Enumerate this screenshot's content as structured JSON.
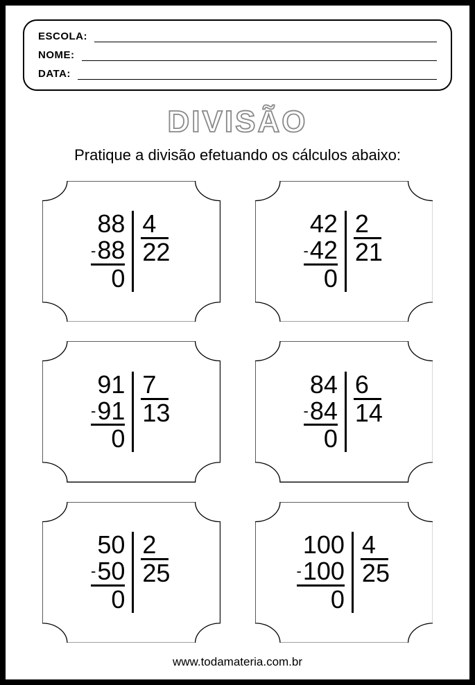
{
  "header": {
    "fields": [
      {
        "label": "ESCOLA:"
      },
      {
        "label": "NOME:"
      },
      {
        "label": "DATA:"
      }
    ]
  },
  "title": "DIVISÃO",
  "instruction": "Pratique a divisão efetuando os cálculos abaixo:",
  "problems": [
    {
      "dividend": "88",
      "subtrahend": "88",
      "remainder": "0",
      "divisor": "4",
      "quotient": "22"
    },
    {
      "dividend": "42",
      "subtrahend": "42",
      "remainder": "0",
      "divisor": "2",
      "quotient": "21"
    },
    {
      "dividend": "91",
      "subtrahend": "91",
      "remainder": "0",
      "divisor": "7",
      "quotient": "13"
    },
    {
      "dividend": "84",
      "subtrahend": "84",
      "remainder": "0",
      "divisor": "6",
      "quotient": "14"
    },
    {
      "dividend": "50",
      "subtrahend": "50",
      "remainder": "0",
      "divisor": "2",
      "quotient": "25"
    },
    {
      "dividend": "100",
      "subtrahend": "100",
      "remainder": "0",
      "divisor": "4",
      "quotient": "25"
    }
  ],
  "footer": "www.todamateria.com.br",
  "style": {
    "page_border_color": "#000000",
    "text_color": "#000000",
    "title_outline_color": "#888888",
    "title_fontsize": 44,
    "instruction_fontsize": 22,
    "number_fontsize": 36,
    "card_border_width": 2,
    "divider_width": 3
  }
}
